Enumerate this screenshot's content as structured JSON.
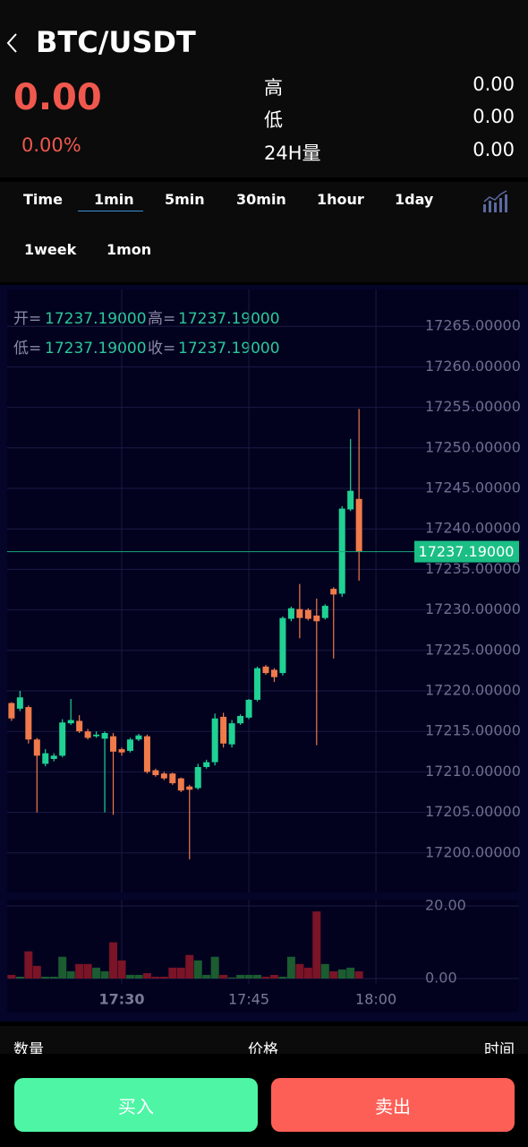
{
  "header": {
    "title": "BTC/USDT",
    "price": "0.00",
    "change": "0.00%"
  },
  "stats": [
    {
      "label": "高",
      "value": "0.00"
    },
    {
      "label": "低",
      "value": "0.00"
    },
    {
      "label": "24H量",
      "value": "0.00"
    }
  ],
  "tabs": [
    "Time",
    "1min",
    "5min",
    "30min",
    "1hour",
    "1day",
    "1week",
    "1mon"
  ],
  "active_tab": "1min",
  "ohlc_info": {
    "open_label": "开=",
    "open": "17237.19000",
    "high_label": "高=",
    "high": "17237.19000",
    "low_label": "低=",
    "low": "17237.19000",
    "close_label": "收=",
    "close": "17237.19000"
  },
  "chart_data": {
    "type": "candlestick",
    "x": [
      "17:17",
      "17:18",
      "17:19",
      "17:20",
      "17:21",
      "17:22",
      "17:23",
      "17:24",
      "17:25",
      "17:26",
      "17:27",
      "17:28",
      "17:29",
      "17:30",
      "17:31",
      "17:32",
      "17:33",
      "17:34",
      "17:35",
      "17:36",
      "17:37",
      "17:38",
      "17:39",
      "17:40",
      "17:41",
      "17:42",
      "17:43",
      "17:44",
      "17:45",
      "17:46",
      "17:47",
      "17:48",
      "17:49",
      "17:50",
      "17:51",
      "17:52",
      "17:53",
      "17:54",
      "17:55",
      "17:56",
      "17:57",
      "17:58"
    ],
    "open": [
      17218.5,
      17217.8,
      17218.0,
      17214.0,
      17211.0,
      17211.6,
      17212.0,
      17216.0,
      17216.3,
      17215.0,
      17214.4,
      17214.1,
      17214.4,
      17212.8,
      17212.6,
      17214.0,
      17214.4,
      17210.2,
      17209.8,
      17209.8,
      17209.2,
      17208.2,
      17208.0,
      17210.6,
      17211.2,
      17216.8,
      17213.4,
      17216.0,
      17216.7,
      17218.9,
      17223.0,
      17222.6,
      17222.2,
      17228.9,
      17230.1,
      17230.0,
      17229.3,
      17229.0,
      17232.6,
      17232.0,
      17242.4,
      17243.7
    ],
    "high": [
      17218.6,
      17220.0,
      17218.2,
      17214.2,
      17212.8,
      17212.3,
      17216.5,
      17219.0,
      17217.0,
      17215.3,
      17215.0,
      17215.0,
      17214.8,
      17213.0,
      17214.2,
      17214.7,
      17214.6,
      17210.4,
      17210.0,
      17209.9,
      17209.3,
      17208.4,
      17211.0,
      17211.5,
      17217.2,
      17217.3,
      17216.4,
      17217.1,
      17219.0,
      17223.0,
      17223.2,
      17222.8,
      17229.2,
      17230.4,
      17233.2,
      17230.2,
      17231.4,
      17230.7,
      17232.8,
      17242.8,
      17251.1,
      17254.8
    ],
    "low": [
      17216.3,
      17217.5,
      17213.5,
      17205.0,
      17210.7,
      17211.3,
      17211.8,
      17215.8,
      17214.8,
      17214.0,
      17214.2,
      17205.0,
      17204.7,
      17212.0,
      17212.4,
      17213.8,
      17209.8,
      17209.4,
      17209.0,
      17208.4,
      17207.5,
      17199.2,
      17207.8,
      17210.4,
      17210.8,
      17213.0,
      17213.0,
      17215.8,
      17216.5,
      17218.7,
      17222.0,
      17221.1,
      17221.9,
      17228.6,
      17226.5,
      17228.7,
      17213.3,
      17228.8,
      17224.0,
      17231.6,
      17242.2,
      17233.6
    ],
    "close": [
      17216.6,
      17219.2,
      17214.0,
      17212.0,
      17212.3,
      17212.0,
      17216.1,
      17216.4,
      17215.0,
      17214.2,
      17214.6,
      17214.8,
      17212.5,
      17212.4,
      17214.0,
      17214.5,
      17210.0,
      17209.6,
      17209.2,
      17208.6,
      17207.7,
      17207.8,
      17210.6,
      17211.2,
      17216.6,
      17213.5,
      17216.0,
      17216.9,
      17218.9,
      17222.8,
      17222.2,
      17221.7,
      17229.0,
      17230.2,
      17229.0,
      17228.9,
      17228.6,
      17230.5,
      17231.9,
      17242.5,
      17244.7,
      17237.2
    ],
    "volume": [
      1,
      0.5,
      7.5,
      3.5,
      0.5,
      0.5,
      6,
      2,
      4,
      4,
      3,
      2,
      10,
      5,
      1,
      1,
      1.5,
      0.5,
      0.5,
      3,
      3,
      6.5,
      5,
      1,
      6,
      1,
      0.3,
      1,
      1,
      1,
      0.5,
      1,
      0.5,
      6,
      4,
      3,
      18.5,
      4,
      2,
      2.5,
      3,
      2
    ],
    "ylim": [
      17195,
      17270
    ],
    "yticks": [
      {
        "value": 17200,
        "label": "17200.00000"
      },
      {
        "value": 17205,
        "label": "17205.00000"
      },
      {
        "value": 17210,
        "label": "17210.00000"
      },
      {
        "value": 17215,
        "label": "17215.00000"
      },
      {
        "value": 17220,
        "label": "17220.00000"
      },
      {
        "value": 17225,
        "label": "17225.00000"
      },
      {
        "value": 17230,
        "label": "17230.00000"
      },
      {
        "value": 17235,
        "label": "17235.00000"
      },
      {
        "value": 17240,
        "label": "17240.00000"
      },
      {
        "value": 17245,
        "label": "17245.00000"
      },
      {
        "value": 17250,
        "label": "17250.00000"
      },
      {
        "value": 17255,
        "label": "17255.00000"
      },
      {
        "value": 17260,
        "label": "17260.00000"
      },
      {
        "value": 17265,
        "label": "17265.00000"
      }
    ],
    "volume_ylim": [
      0,
      21
    ],
    "volume_yticks": [
      {
        "value": 20,
        "label": "20.00"
      },
      {
        "value": 0,
        "label": "0.00"
      }
    ],
    "xticks": [
      "17:30",
      "17:45",
      "18:00"
    ],
    "last_price": {
      "value": 17237.19,
      "label": "17237.19000"
    },
    "up_color": "#1fd294",
    "down_color": "#f07a4a",
    "volume_up_color": "#1b5c30",
    "volume_down_color": "#7a1426",
    "grid": true
  },
  "list_header": [
    "数量",
    "价格",
    "时间"
  ],
  "buttons": {
    "buy": "买入",
    "sell": "卖出"
  }
}
